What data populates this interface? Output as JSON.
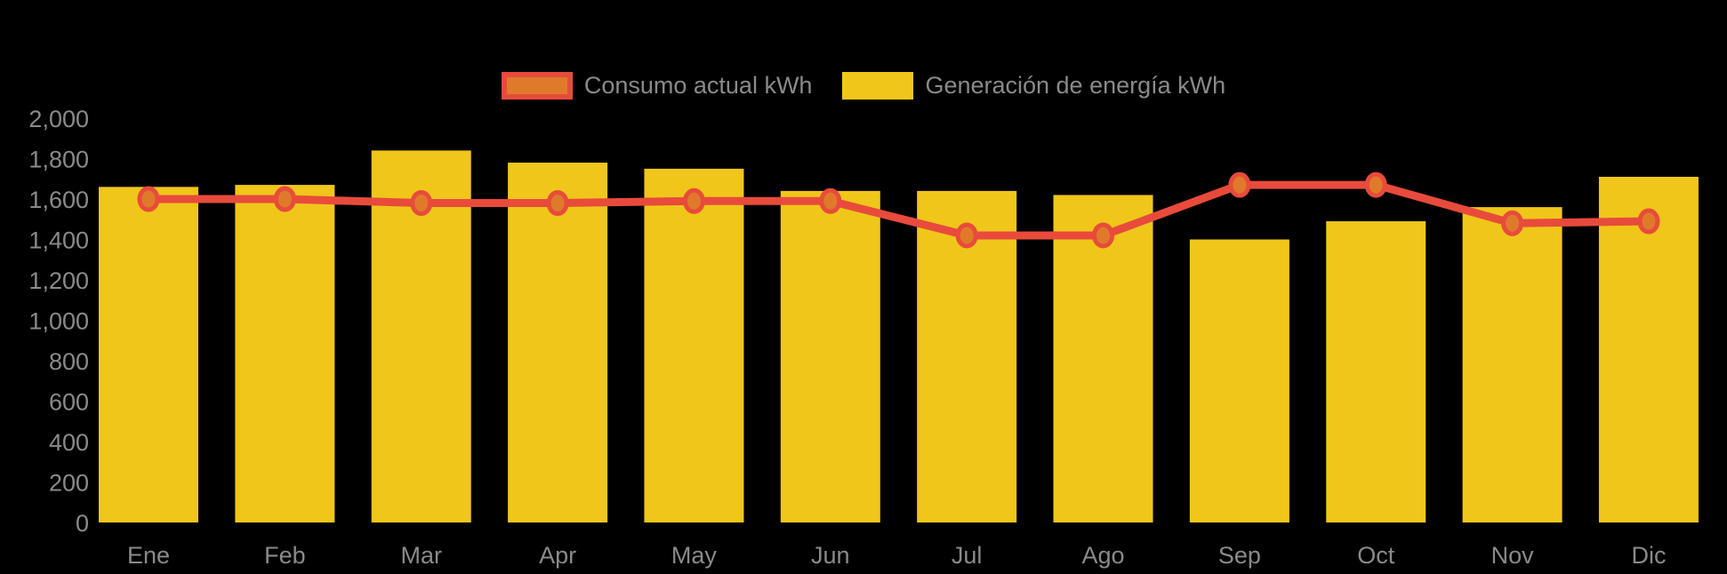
{
  "chart_data": {
    "type": "combo",
    "title": "",
    "categories": [
      "Ene",
      "Feb",
      "Mar",
      "Apr",
      "May",
      "Jun",
      "Jul",
      "Ago",
      "Sep",
      "Oct",
      "Nov",
      "Dic"
    ],
    "series": [
      {
        "name": "Consumo actual kWh",
        "type": "line",
        "values": [
          1600,
          1600,
          1580,
          1580,
          1590,
          1590,
          1420,
          1420,
          1670,
          1670,
          1480,
          1490
        ],
        "line_color": "#E84B3B",
        "marker_fill": "#E07A2B"
      },
      {
        "name": "Generación de energía kWh",
        "type": "bar",
        "values": [
          1660,
          1670,
          1840,
          1780,
          1750,
          1640,
          1640,
          1620,
          1400,
          1490,
          1560,
          1710
        ],
        "color": "#F0C61A"
      }
    ],
    "ylim": [
      0,
      2000
    ],
    "ytick_step": 200,
    "ytick_labels": [
      "0",
      "200",
      "400",
      "600",
      "800",
      "1,000",
      "1,200",
      "1,400",
      "1,600",
      "1,800",
      "2,000"
    ],
    "xlabel": "",
    "ylabel": "",
    "grid": false,
    "legend_position": "top-center",
    "background_color": "#000000",
    "axis_text_color": "#8A8A8A"
  }
}
